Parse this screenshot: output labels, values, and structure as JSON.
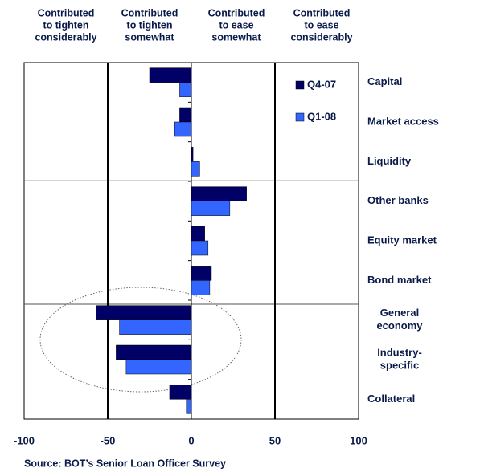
{
  "chart_data": {
    "type": "hbar",
    "column_headers": [
      [
        "Contributed",
        "to tighten",
        "considerably"
      ],
      [
        "Contributed",
        "to tighten",
        "somewhat"
      ],
      [
        "Contributed",
        "to ease",
        "somewhat"
      ],
      [
        "Contributed",
        "to ease",
        "considerably"
      ]
    ],
    "categories": [
      [
        "Capital"
      ],
      [
        "Market access"
      ],
      [
        "Liquidity"
      ],
      [
        "Other banks"
      ],
      [
        "Equity market"
      ],
      [
        "Bond market"
      ],
      [
        "General",
        "economy"
      ],
      [
        "Industry-",
        "specific"
      ],
      [
        "Collateral"
      ]
    ],
    "series": [
      {
        "name": "Q4-07",
        "color": "#000066",
        "values": [
          -25,
          -7,
          1,
          33,
          8,
          12,
          -57,
          -45,
          -13
        ]
      },
      {
        "name": "Q1-08",
        "color": "#3366ff",
        "values": [
          -7,
          -10,
          5,
          23,
          10,
          11,
          -43,
          -39,
          -3
        ]
      }
    ],
    "xlim": [
      -100,
      100
    ],
    "xticks": [
      -100,
      -50,
      0,
      50,
      100
    ],
    "source": "Source: BOT’s Senior Loan Officer Survey"
  }
}
